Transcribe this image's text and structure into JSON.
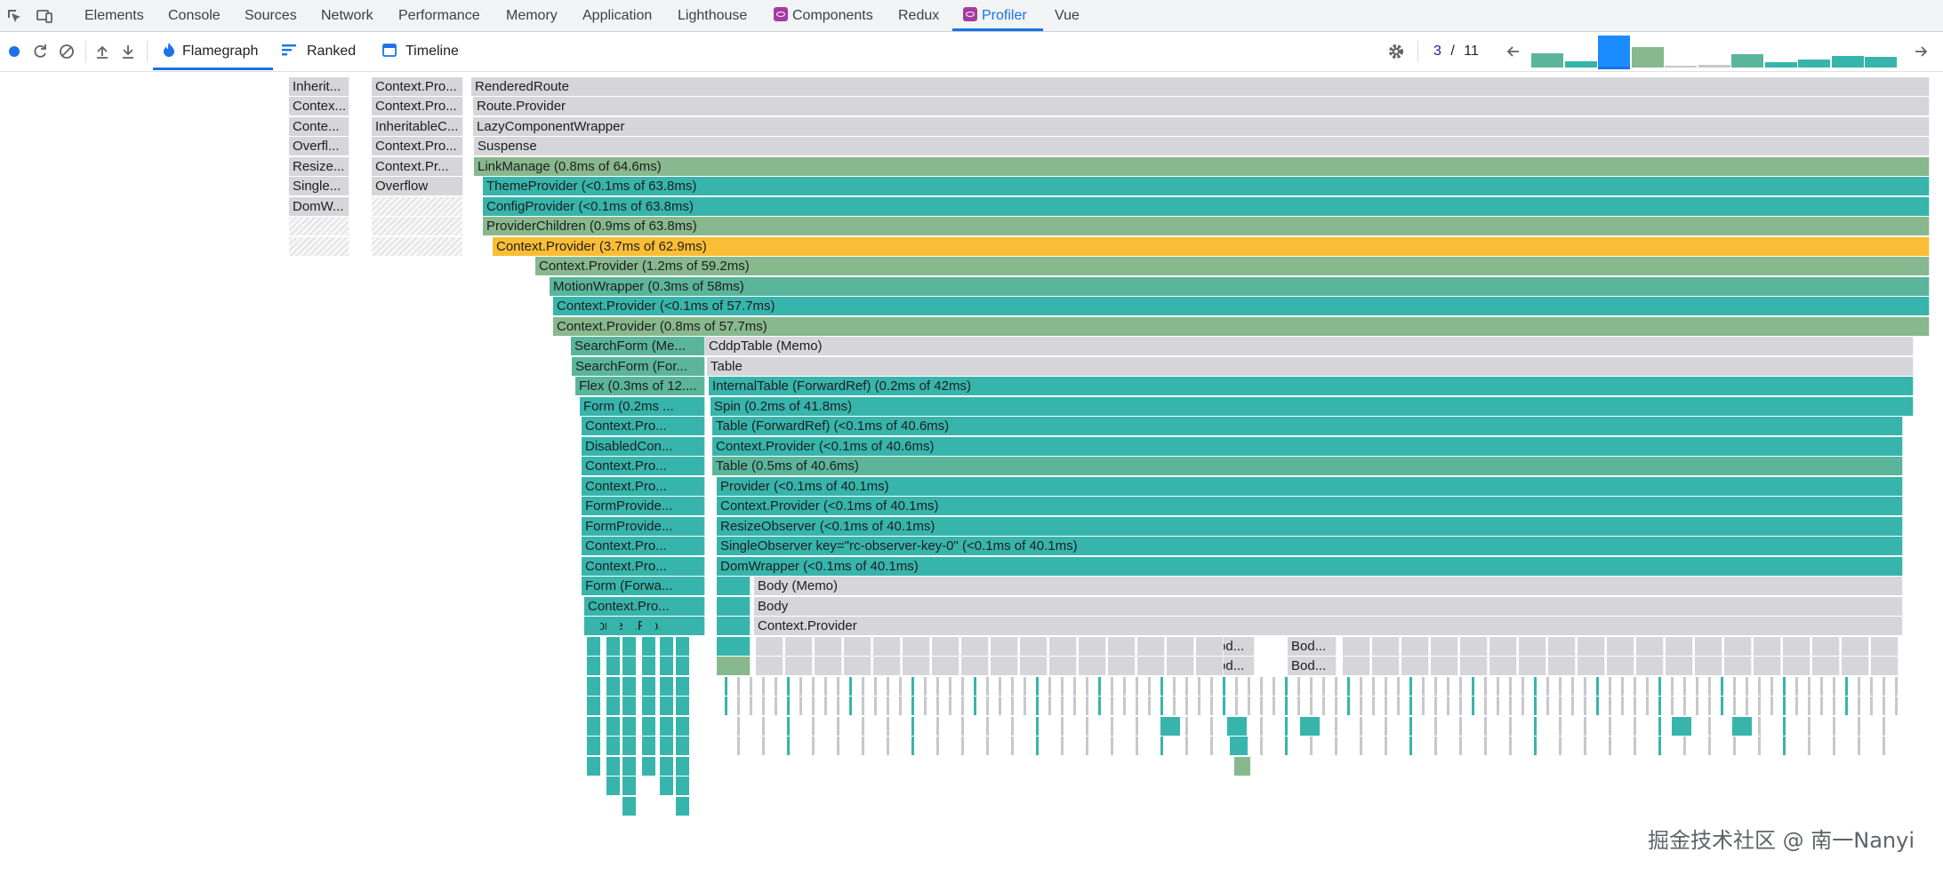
{
  "devtools": {
    "tabs": [
      "Elements",
      "Console",
      "Sources",
      "Network",
      "Performance",
      "Memory",
      "Application",
      "Lighthouse",
      "Components",
      "Redux",
      "Profiler",
      "Vue"
    ],
    "active_tab": "Profiler"
  },
  "profiler": {
    "tabs": {
      "flamegraph": "Flamegraph",
      "ranked": "Ranked",
      "timeline": "Timeline"
    },
    "commit": {
      "current": "3",
      "separator": "/",
      "total": "11"
    },
    "commit_durations": [
      0.45,
      0.2,
      1.0,
      0.65,
      0.06,
      0.08,
      0.42,
      0.18,
      0.26,
      0.35,
      0.33
    ],
    "selected_commit_index": 2
  },
  "colors": {
    "teal": "#37b5ac",
    "teal_mid": "#5bb59a",
    "green": "#88b88d",
    "yellow": "#fabd35",
    "gray": "#d6d6da",
    "blue_accent": "#1a73e8"
  },
  "flamegraph": {
    "left_columns": [
      [
        "Inherit...",
        "Contex...",
        "Conte...",
        "Overfl...",
        "Resize...",
        "Single...",
        "DomW..."
      ],
      [
        "Context.Pro...",
        "Context.Pro...",
        "InheritableC...",
        "Context.Pro...",
        "Context.Pr...",
        "Overflow"
      ]
    ],
    "main_rows": [
      "RenderedRoute",
      "Route.Provider",
      "LazyComponentWrapper",
      "Suspense",
      "LinkManage (0.8ms of 64.6ms)",
      "ThemeProvider (<0.1ms of 63.8ms)",
      "ConfigProvider (<0.1ms of 63.8ms)",
      "ProviderChildren (0.9ms of 63.8ms)",
      "Context.Provider (3.7ms of 62.9ms)",
      "Context.Provider (1.2ms of 59.2ms)",
      "MotionWrapper (0.3ms of 58ms)",
      "Context.Provider (<0.1ms of 57.7ms)",
      "Context.Provider (0.8ms of 57.7ms)"
    ],
    "form_column": [
      "SearchForm (Me...",
      "SearchForm (For...",
      "Flex (0.3ms of 12....",
      "Form (0.2ms ...",
      "Context.Pro...",
      "DisabledCon...",
      "Context.Pro...",
      "Context.Pro...",
      "FormProvide...",
      "FormProvide...",
      "Context.Pro...",
      "Context.Pro...",
      "Form (Forwa...",
      "Context.Pro...",
      "Context.Pro..."
    ],
    "table_column": [
      "CddpTable (Memo)",
      "Table",
      "InternalTable (ForwardRef) (0.2ms of 42ms)",
      "Spin (0.2ms of 41.8ms)",
      "Table (ForwardRef) (<0.1ms of 40.6ms)",
      "Context.Provider (<0.1ms of 40.6ms)",
      "Table (0.5ms of 40.6ms)",
      "Provider (<0.1ms of 40.1ms)",
      "Context.Provider (<0.1ms of 40.1ms)",
      "ResizeObserver (<0.1ms of 40.1ms)",
      "SingleObserver key=\"rc-observer-key-0\" (<0.1ms of 40.1ms)",
      "DomWrapper (<0.1ms of 40.1ms)",
      "Body (Memo)",
      "Body",
      "Context.Provider"
    ],
    "body_short_labels": [
      "Bod...",
      "Bod...",
      "Bod...",
      "Bod..."
    ]
  },
  "watermark": "掘金技术社区 @ 南一Nanyi"
}
